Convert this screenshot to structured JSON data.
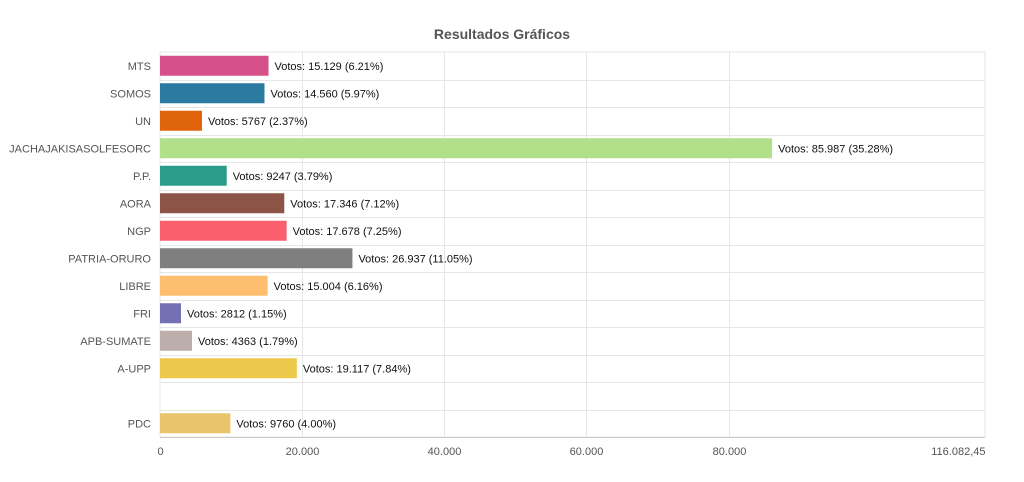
{
  "chart_data": {
    "type": "bar",
    "orientation": "horizontal",
    "title": "Resultados Gráficos",
    "xlabel": "",
    "ylabel": "",
    "xlim": [
      0,
      116082.45
    ],
    "x_ticks": [
      {
        "value": 0,
        "label": "0"
      },
      {
        "value": 20000,
        "label": "20.000"
      },
      {
        "value": 40000,
        "label": "40.000"
      },
      {
        "value": 60000,
        "label": "60.000"
      },
      {
        "value": 80000,
        "label": "80.000"
      },
      {
        "value": 116082.45,
        "label": "116.082,45"
      }
    ],
    "grid": true,
    "categories": [
      "MTS",
      "SOMOS",
      "UN",
      "JACHAJAKISASOLFESORC",
      "P.P.",
      "AORA",
      "NGP",
      "PATRIA-ORURO",
      "LIBRE",
      "FRI",
      "APB-SUMATE",
      "A-UPP",
      "",
      "PDC"
    ],
    "values": [
      15129,
      14560,
      5767,
      85987,
      9247,
      17346,
      17678,
      26937,
      15004,
      2812,
      4363,
      19117,
      null,
      9760
    ],
    "data_labels": [
      "Votos: 15.129 (6.21%)",
      "Votos: 14.560 (5.97%)",
      "Votos: 5767 (2.37%)",
      "Votos: 85.987 (35.28%)",
      "Votos: 9247 (3.79%)",
      "Votos: 17.346 (7.12%)",
      "Votos: 17.678 (7.25%)",
      "Votos: 26.937 (11.05%)",
      "Votos: 15.004 (6.16%)",
      "Votos: 2812 (1.15%)",
      "Votos: 4363 (1.79%)",
      "Votos: 19.117 (7.84%)",
      "",
      "Votos: 9760 (4.00%)"
    ],
    "colors": [
      "#d6508a",
      "#2a7b9f",
      "#e0640c",
      "#b2df8a",
      "#2a9d8a",
      "#8b5446",
      "#fb5e6d",
      "#7f7f7f",
      "#fdbf6f",
      "#7570b3",
      "#bcaeaa",
      "#ecc94b",
      "",
      "#e9c46a"
    ]
  }
}
